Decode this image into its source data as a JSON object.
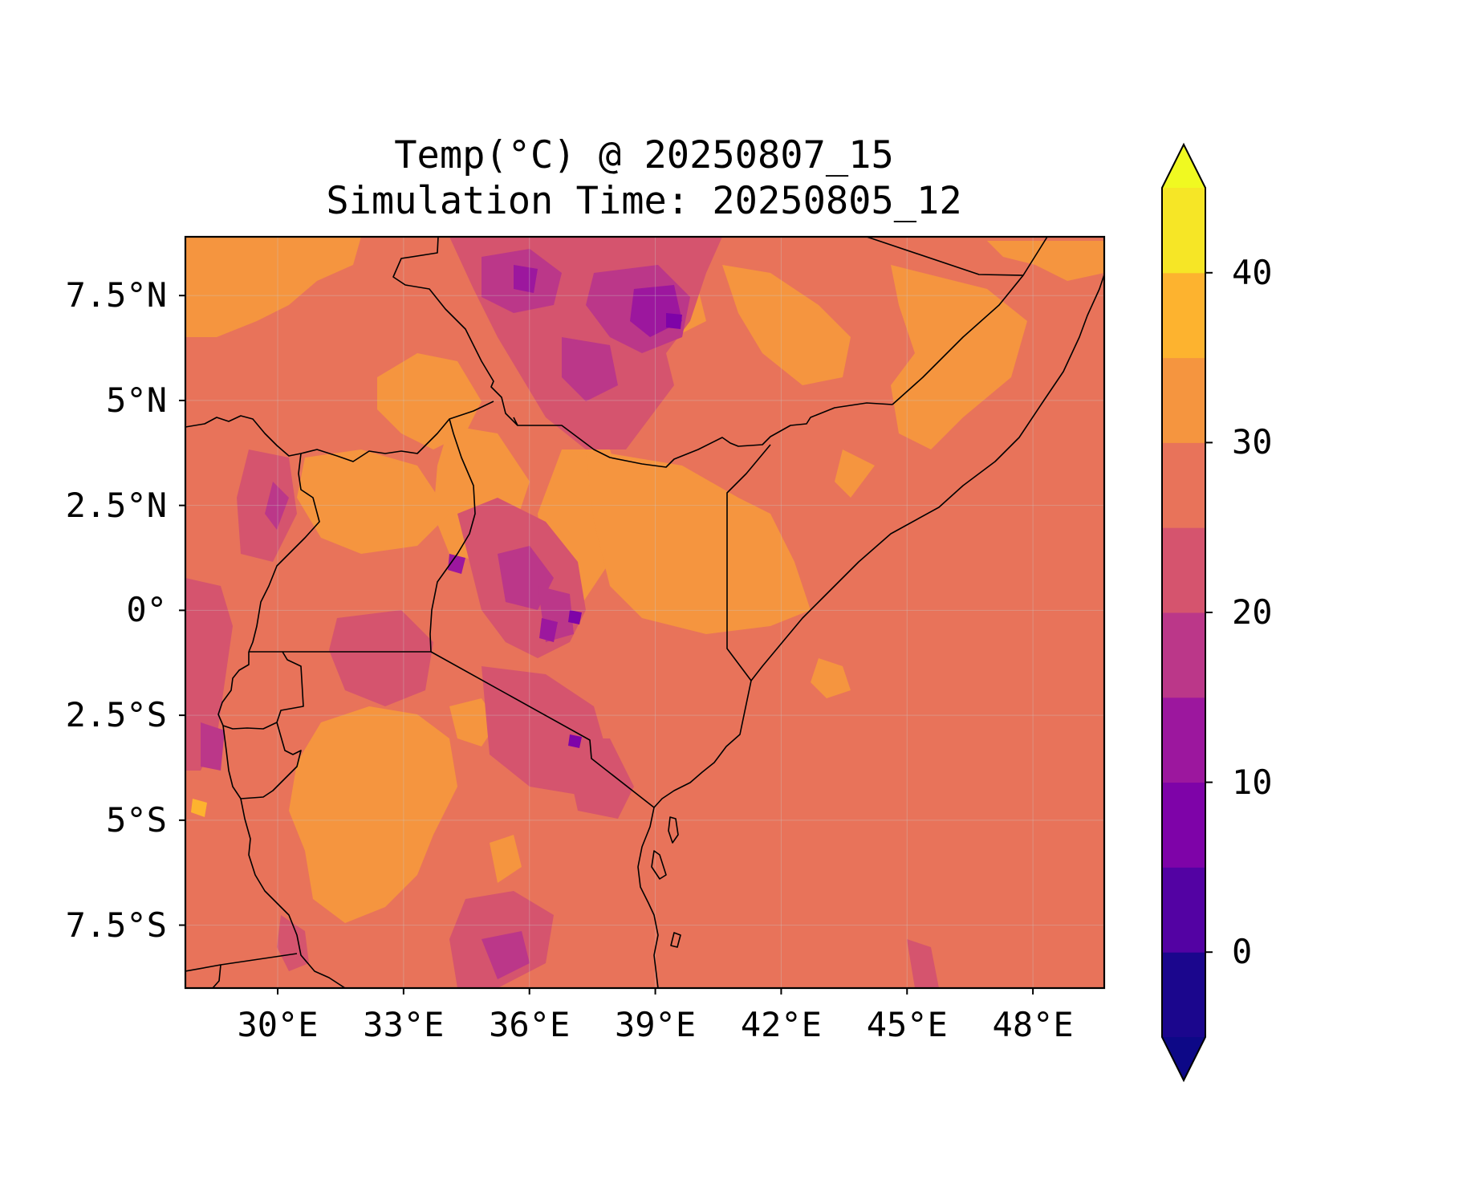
{
  "title": {
    "line1": "Temp(°C) @ 20250807_15",
    "line2": "Simulation Time: 20250805_12"
  },
  "map": {
    "lon_range": [
      27.8,
      49.7
    ],
    "lat_range": [
      -9.0,
      8.9
    ],
    "x_ticks": [
      {
        "value": 30,
        "label": "30°E"
      },
      {
        "value": 33,
        "label": "33°E"
      },
      {
        "value": 36,
        "label": "36°E"
      },
      {
        "value": 39,
        "label": "39°E"
      },
      {
        "value": 42,
        "label": "42°E"
      },
      {
        "value": 45,
        "label": "45°E"
      },
      {
        "value": 48,
        "label": "48°E"
      }
    ],
    "y_ticks": [
      {
        "value": 7.5,
        "label": "7.5°N"
      },
      {
        "value": 5,
        "label": "5°N"
      },
      {
        "value": 2.5,
        "label": "2.5°N"
      },
      {
        "value": 0,
        "label": "0°"
      },
      {
        "value": -2.5,
        "label": "2.5°S"
      },
      {
        "value": -5,
        "label": "5°S"
      },
      {
        "value": -7.5,
        "label": "7.5°S"
      }
    ],
    "colors": {
      "t_25_30": "#e8735a",
      "t_30_35": "#f5953f",
      "t_35_40": "#fdb32f",
      "t_20_25": "#d5546e",
      "t_15_20": "#bb3789",
      "t_10_15": "#9c179e",
      "t_5_10": "#7e03a8",
      "border": "#000000"
    }
  },
  "colorbar": {
    "range": [
      -5,
      45
    ],
    "bounds": [
      -5,
      0,
      5,
      10,
      15,
      20,
      25,
      30,
      35,
      40,
      45
    ],
    "colors": [
      "#1b068d",
      "#5302a3",
      "#7e03a8",
      "#9c179e",
      "#bb3789",
      "#d5546e",
      "#e8735a",
      "#f5953f",
      "#fdb32f",
      "#f6e626"
    ],
    "under_color": "#0d0887",
    "over_color": "#f0f921",
    "ticks": [
      {
        "value": 0,
        "label": "0"
      },
      {
        "value": 10,
        "label": "10"
      },
      {
        "value": 20,
        "label": "20"
      },
      {
        "value": 30,
        "label": "30"
      },
      {
        "value": 40,
        "label": "40"
      }
    ]
  }
}
